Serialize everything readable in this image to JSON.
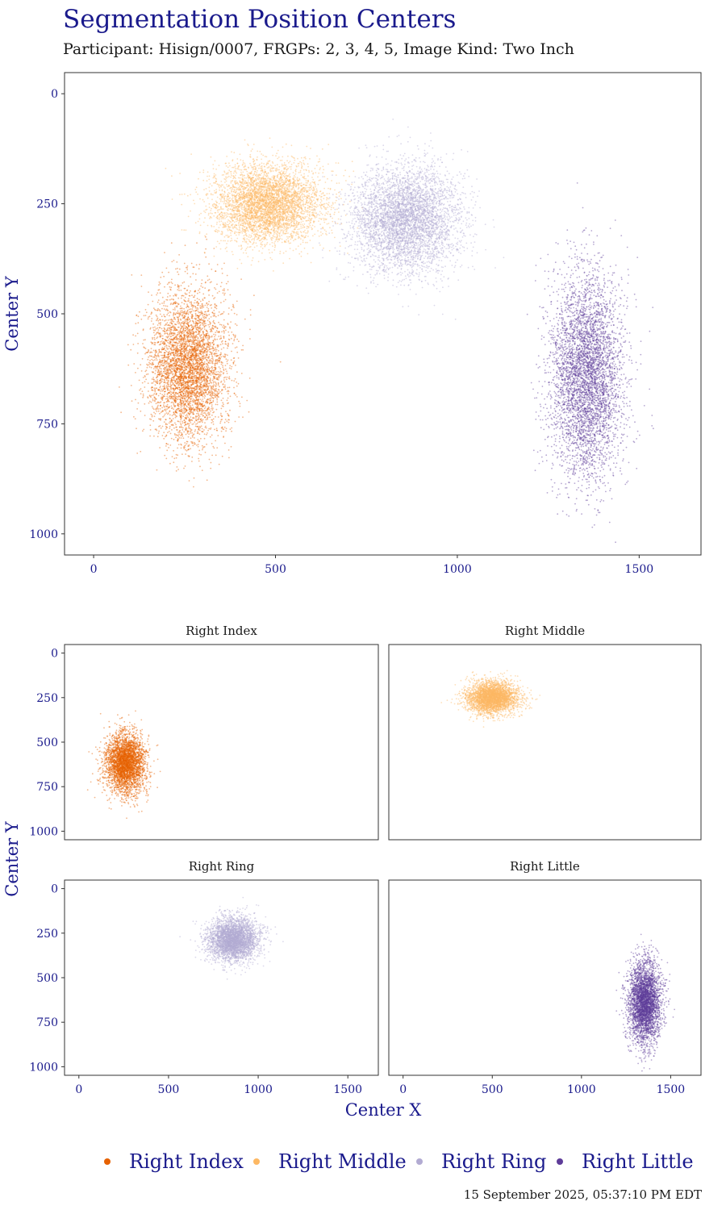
{
  "title": "Segmentation Position Centers",
  "subtitle": "Participant: Hisign/0007, FRGPs: 2, 3, 4, 5, Image Kind: Two Inch",
  "timestamp": "15 September 2025, 05:37:10 PM EDT",
  "colors": {
    "right_index": "#e66101",
    "right_middle": "#fdb863",
    "right_ring": "#b2abd2",
    "right_little": "#5e3c99",
    "axis_text": "#1a1a8c"
  },
  "chart_data": [
    {
      "type": "scatter",
      "panel": "combined",
      "xlabel": "",
      "ylabel": "Center Y",
      "xlim": [
        -80,
        1670
      ],
      "ylim": [
        1048,
        -48
      ],
      "y_reversed": true,
      "x_ticks": [
        0,
        500,
        1000,
        1500
      ],
      "y_ticks": [
        0,
        250,
        500,
        750,
        1000
      ],
      "grid": false,
      "series": [
        {
          "name": "Right Index",
          "center": [
            260,
            620
          ],
          "spread": [
            55,
            85
          ],
          "points": 4500
        },
        {
          "name": "Right Middle",
          "center": [
            480,
            250
          ],
          "spread": [
            75,
            45
          ],
          "points": 4500
        },
        {
          "name": "Right Ring",
          "center": [
            860,
            285
          ],
          "spread": [
            75,
            60
          ],
          "points": 4500
        },
        {
          "name": "Right Little",
          "center": [
            1355,
            640
          ],
          "spread": [
            50,
            115
          ],
          "points": 4500
        }
      ]
    },
    {
      "type": "scatter",
      "panel": "facets",
      "xlabel": "Center X",
      "ylabel": "Center Y",
      "xlim": [
        -80,
        1670
      ],
      "ylim": [
        1048,
        -48
      ],
      "y_reversed": true,
      "x_ticks": [
        0,
        500,
        1000,
        1500
      ],
      "y_ticks": [
        0,
        250,
        500,
        750,
        1000
      ],
      "facets": [
        {
          "name": "Right Index",
          "center": [
            260,
            620
          ],
          "spread": [
            55,
            85
          ],
          "points": 3500
        },
        {
          "name": "Right Middle",
          "center": [
            500,
            250
          ],
          "spread": [
            70,
            45
          ],
          "points": 3500
        },
        {
          "name": "Right Ring",
          "center": [
            860,
            285
          ],
          "spread": [
            70,
            60
          ],
          "points": 3500
        },
        {
          "name": "Right Little",
          "center": [
            1355,
            640
          ],
          "spread": [
            45,
            115
          ],
          "points": 3500
        }
      ]
    }
  ],
  "legend": {
    "position": "bottom",
    "items": [
      {
        "label": "Right Index",
        "color": "#e66101"
      },
      {
        "label": "Right Middle",
        "color": "#fdb863"
      },
      {
        "label": "Right Ring",
        "color": "#b2abd2"
      },
      {
        "label": "Right Little",
        "color": "#5e3c99"
      }
    ]
  }
}
